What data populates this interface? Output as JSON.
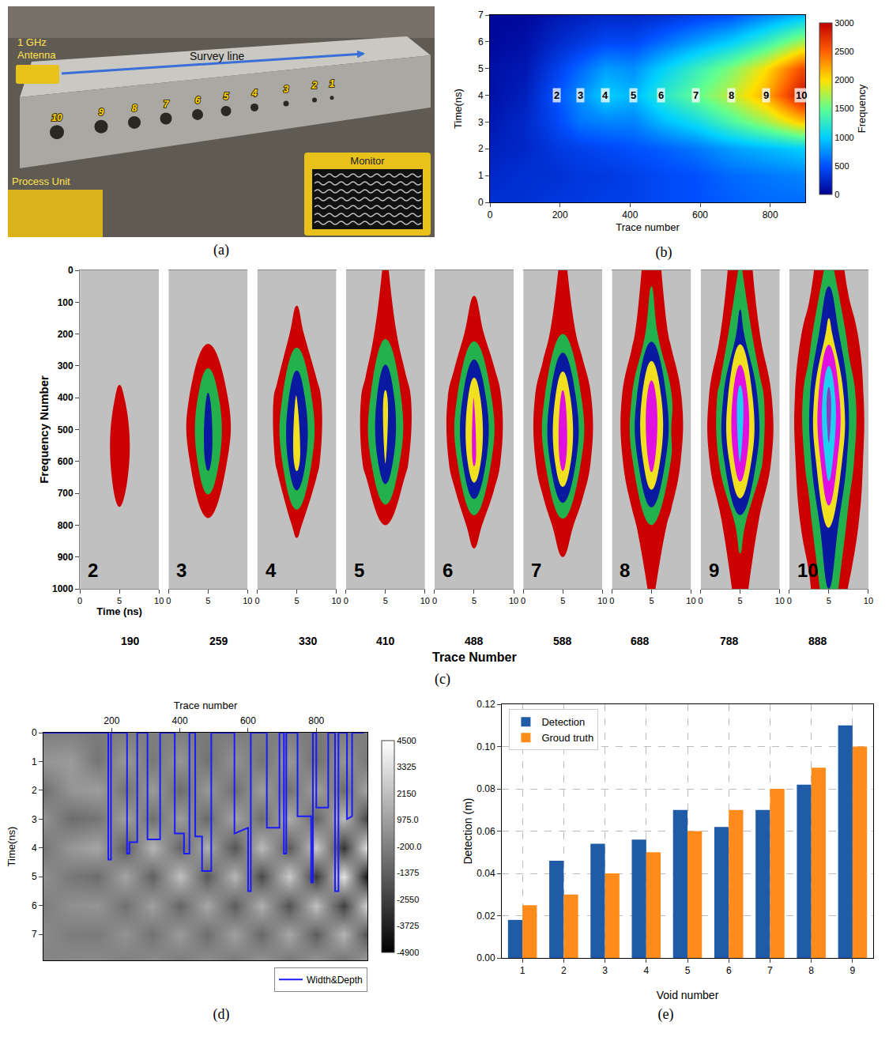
{
  "photo": {
    "panel": "(a)",
    "antenna": [
      "1 GHz",
      "Antenna"
    ],
    "survey_line": "Survey line",
    "monitor": "Monitor",
    "process_unit": "Process Unit",
    "voids": [
      "10",
      "9",
      "8",
      "7",
      "6",
      "5",
      "4",
      "3",
      "2",
      "1"
    ]
  },
  "chart_data": [
    {
      "panel": "(b)",
      "type": "heatmap",
      "x_title": "Trace number",
      "y_title": "Time(ns)",
      "colorbar_title": "Frequency",
      "x": [
        0,
        100,
        190,
        259,
        330,
        410,
        488,
        588,
        688,
        788,
        888
      ],
      "y": [
        0,
        1,
        2,
        3,
        4,
        5,
        6,
        7
      ],
      "z": [
        [
          300,
          300,
          350,
          350,
          400,
          400,
          450,
          500,
          550,
          600,
          600
        ],
        [
          250,
          300,
          300,
          350,
          350,
          400,
          450,
          500,
          600,
          650,
          700
        ],
        [
          200,
          250,
          350,
          400,
          450,
          500,
          550,
          650,
          800,
          900,
          1000
        ],
        [
          150,
          250,
          450,
          650,
          700,
          700,
          900,
          1100,
          1400,
          1700,
          2100
        ],
        [
          100,
          200,
          500,
          750,
          1000,
          900,
          1200,
          1500,
          1800,
          2200,
          2900
        ],
        [
          100,
          150,
          400,
          600,
          800,
          750,
          1000,
          1300,
          1600,
          2000,
          2600
        ],
        [
          50,
          100,
          250,
          350,
          450,
          450,
          600,
          800,
          1000,
          1300,
          1700
        ],
        [
          50,
          50,
          150,
          200,
          250,
          250,
          300,
          400,
          500,
          700,
          900
        ]
      ],
      "xlim": [
        0,
        900
      ],
      "xticks": [
        0,
        200,
        400,
        600,
        800
      ],
      "ylim": [
        0,
        7
      ],
      "yticks": [
        0,
        1,
        2,
        3,
        4,
        5,
        6,
        7
      ],
      "zlim": [
        0,
        3000
      ],
      "zticks": [
        0,
        500,
        1000,
        1500,
        2000,
        2500,
        3000
      ],
      "colors": [
        "#000090",
        "#0050ff",
        "#00d0ff",
        "#60ff90",
        "#ffe000",
        "#ff6000",
        "#c00000"
      ],
      "point_labels": [
        {
          "text": "2",
          "x": 190,
          "y": 4
        },
        {
          "text": "3",
          "x": 259,
          "y": 4
        },
        {
          "text": "4",
          "x": 330,
          "y": 4
        },
        {
          "text": "5",
          "x": 410,
          "y": 4
        },
        {
          "text": "6",
          "x": 488,
          "y": 4
        },
        {
          "text": "7",
          "x": 588,
          "y": 4
        },
        {
          "text": "8",
          "x": 688,
          "y": 4
        },
        {
          "text": "9",
          "x": 788,
          "y": 4
        },
        {
          "text": "10",
          "x": 888,
          "y": 4
        }
      ]
    },
    {
      "panel": "(c)",
      "type": "contour",
      "x_title": "Time (ns)",
      "y_title": "Frequency Number",
      "group_title": "Trace Number",
      "x": [
        0,
        2.5,
        5,
        7.5,
        10
      ],
      "y": [
        0,
        200,
        400,
        600,
        800,
        1000
      ],
      "xlim": [
        0,
        10
      ],
      "xticks": [
        0,
        5,
        10
      ],
      "ylim": [
        1000,
        0
      ],
      "yticks": [
        0,
        100,
        200,
        300,
        400,
        500,
        600,
        700,
        800,
        900,
        1000
      ],
      "levels": [
        1,
        2,
        3,
        4,
        5,
        6,
        7
      ],
      "colors": [
        "#c0c0c0",
        "#cc0000",
        "#22b14c",
        "#0a1aa0",
        "#f0e020",
        "#e010e0",
        "#20d0f0",
        "#8040c0"
      ],
      "slices": [
        {
          "label": "2",
          "trace": 190,
          "z": [
            [
              0,
              0,
              0.3,
              0,
              0
            ],
            [
              0,
              0,
              0.2,
              0,
              0
            ],
            [
              0,
              0.3,
              1.2,
              0.4,
              0
            ],
            [
              0,
              0.4,
              1.5,
              0.5,
              0
            ],
            [
              0,
              0.2,
              0.8,
              0.2,
              0
            ],
            [
              0,
              0,
              0.3,
              0,
              0
            ]
          ]
        },
        {
          "label": "3",
          "trace": 259,
          "z": [
            [
              0,
              0,
              0,
              0,
              0
            ],
            [
              0,
              0.2,
              0.6,
              0.2,
              0
            ],
            [
              0,
              0.9,
              3.2,
              1.0,
              0
            ],
            [
              0,
              0.8,
              3.4,
              0.9,
              0
            ],
            [
              0,
              0.2,
              0.7,
              0.2,
              0
            ],
            [
              0,
              0,
              0,
              0,
              0
            ]
          ]
        },
        {
          "label": "4",
          "trace": 330,
          "z": [
            [
              0,
              0,
              0.5,
              0,
              0
            ],
            [
              0,
              0.3,
              1.4,
              0.3,
              0
            ],
            [
              0,
              1.2,
              4.2,
              1.3,
              0
            ],
            [
              0,
              1.1,
              4.5,
              1.2,
              0
            ],
            [
              0,
              0.4,
              1.2,
              0.4,
              0
            ],
            [
              0,
              0,
              0.2,
              0,
              0
            ]
          ]
        },
        {
          "label": "5",
          "trace": 410,
          "z": [
            [
              0,
              0,
              1.2,
              0,
              0
            ],
            [
              0,
              0.4,
              1.8,
              0.4,
              0
            ],
            [
              0,
              1.3,
              4.3,
              1.4,
              0
            ],
            [
              0,
              1.2,
              4.1,
              1.2,
              0
            ],
            [
              0,
              0.3,
              1.0,
              0.3,
              0
            ],
            [
              0,
              0,
              0.1,
              0,
              0
            ]
          ]
        },
        {
          "label": "6",
          "trace": 488,
          "z": [
            [
              0,
              0,
              0.6,
              0,
              0
            ],
            [
              0,
              0.4,
              1.6,
              0.4,
              0
            ],
            [
              0,
              1.5,
              5.1,
              1.6,
              0
            ],
            [
              0,
              1.4,
              5.3,
              1.5,
              0
            ],
            [
              0,
              0.4,
              1.4,
              0.4,
              0
            ],
            [
              0,
              0,
              0.3,
              0,
              0
            ]
          ]
        },
        {
          "label": "7",
          "trace": 588,
          "z": [
            [
              0,
              0,
              1.3,
              0,
              0
            ],
            [
              0,
              0.5,
              2.0,
              0.5,
              0
            ],
            [
              0,
              1.7,
              5.4,
              1.8,
              0
            ],
            [
              0,
              1.6,
              5.6,
              1.7,
              0
            ],
            [
              0,
              0.5,
              1.6,
              0.5,
              0
            ],
            [
              0,
              0,
              0.4,
              0,
              0
            ]
          ]
        },
        {
          "label": "8",
          "trace": 688,
          "z": [
            [
              0,
              0.2,
              1.8,
              0.2,
              0
            ],
            [
              0,
              0.7,
              2.6,
              0.7,
              0
            ],
            [
              0,
              2.0,
              5.9,
              2.1,
              0
            ],
            [
              0,
              1.8,
              5.6,
              1.9,
              0
            ],
            [
              0,
              0.7,
              2.0,
              0.7,
              0
            ],
            [
              0,
              0.2,
              1.2,
              0.2,
              0
            ]
          ]
        },
        {
          "label": "9",
          "trace": 788,
          "z": [
            [
              0,
              0.3,
              2.2,
              0.3,
              0
            ],
            [
              0,
              1.0,
              3.5,
              1.0,
              0
            ],
            [
              0,
              2.4,
              6.6,
              2.5,
              0
            ],
            [
              0,
              2.2,
              6.2,
              2.3,
              0
            ],
            [
              0,
              0.8,
              2.4,
              0.8,
              0
            ],
            [
              0,
              0.3,
              1.5,
              0.3,
              0
            ]
          ]
        },
        {
          "label": "10",
          "trace": 888,
          "z": [
            [
              0,
              0.5,
              2.5,
              0.6,
              0
            ],
            [
              0.2,
              1.5,
              4.5,
              1.6,
              0.3
            ],
            [
              0.3,
              2.8,
              7.5,
              2.9,
              0.4
            ],
            [
              0.3,
              2.5,
              6.8,
              2.6,
              0.4
            ],
            [
              0.2,
              1.6,
              4.2,
              1.7,
              0.3
            ],
            [
              0,
              0.8,
              3.0,
              0.9,
              0.2
            ]
          ]
        }
      ]
    },
    {
      "panel": "(d)",
      "type": "heatmap",
      "x_title": "Trace number",
      "y_title": "Time(ns)",
      "x": [
        0,
        80,
        160,
        240,
        320,
        400,
        480,
        560,
        640,
        720,
        800,
        880,
        950
      ],
      "y": [
        0,
        1,
        2,
        3,
        4,
        5,
        6,
        7,
        8
      ],
      "z": [
        [
          -300,
          -200,
          -400,
          -300,
          -200,
          -300,
          -400,
          -300,
          -200,
          -300,
          -400,
          -300,
          -200
        ],
        [
          600,
          800,
          -600,
          700,
          -500,
          600,
          -700,
          500,
          -600,
          700,
          -800,
          600,
          -500
        ],
        [
          -800,
          600,
          900,
          -700,
          800,
          -900,
          700,
          -800,
          900,
          -700,
          1000,
          -900,
          1200
        ],
        [
          500,
          -900,
          -600,
          1000,
          -800,
          900,
          -1000,
          1200,
          -900,
          1500,
          -1200,
          2000,
          -2500
        ],
        [
          -600,
          700,
          1200,
          -1500,
          1800,
          -1200,
          1500,
          -1800,
          2000,
          -1600,
          2500,
          -3000,
          3500
        ],
        [
          400,
          -500,
          -900,
          1200,
          -1400,
          2200,
          -1600,
          1800,
          -2200,
          2600,
          -2800,
          3500,
          -4200
        ],
        [
          -300,
          400,
          600,
          -800,
          1000,
          -1200,
          1300,
          -1500,
          1600,
          -1900,
          2200,
          -2600,
          3000
        ],
        [
          200,
          -300,
          -400,
          500,
          -700,
          800,
          -900,
          1000,
          -1100,
          1300,
          -1500,
          1800,
          -2000
        ],
        [
          -100,
          200,
          300,
          -300,
          400,
          -500,
          500,
          -600,
          700,
          -800,
          900,
          -1000,
          1200
        ]
      ],
      "xlim": [
        0,
        950
      ],
      "xticks": [
        200,
        400,
        600,
        800
      ],
      "ylim": [
        7.9,
        0
      ],
      "yticks": [
        0,
        1,
        2,
        3,
        4,
        5,
        6,
        7
      ],
      "zlim": [
        -4900,
        4500
      ],
      "zticks": [
        4500,
        3325,
        2150,
        {
          "value": 975,
          "label": "975.0"
        },
        {
          "value": -200,
          "label": "-200.0"
        },
        -1375,
        -2550,
        -3725,
        -4900
      ],
      "colors": [
        "#000000",
        "#ffffff"
      ],
      "legend": "bottom",
      "series": [
        {
          "name": "Width&Depth",
          "color": "#1a1aff",
          "x": [
            0,
            190,
            190,
            198,
            198,
            245,
            245,
            252,
            252,
            275,
            275,
            305,
            305,
            342,
            342,
            385,
            385,
            412,
            412,
            428,
            428,
            445,
            445,
            465,
            465,
            492,
            492,
            560,
            560,
            600,
            600,
            608,
            608,
            655,
            655,
            692,
            692,
            705,
            705,
            712,
            712,
            745,
            745,
            785,
            785,
            790,
            790,
            800,
            800,
            835,
            835,
            855,
            855,
            865,
            865,
            890,
            890,
            905,
            905,
            940
          ],
          "y": [
            0,
            0,
            4.4,
            4.4,
            0,
            0,
            4.2,
            4.2,
            3.8,
            3.8,
            0,
            0,
            3.7,
            3.7,
            0,
            0,
            3.5,
            3.5,
            4.2,
            4.2,
            0,
            0,
            3.6,
            3.6,
            4.8,
            4.8,
            0,
            0,
            3.5,
            3.3,
            5.5,
            5.5,
            0,
            0,
            3.3,
            3.3,
            0,
            0,
            4.2,
            4.2,
            0,
            0,
            2.9,
            2.9,
            5.2,
            5.2,
            0,
            0,
            2.6,
            2.6,
            0,
            0,
            5.5,
            5.5,
            0,
            0,
            3.0,
            2.9,
            0,
            0
          ]
        }
      ]
    },
    {
      "panel": "(e)",
      "type": "bar",
      "x_title": "Void number",
      "y_title": "Detection (m)",
      "categories": [
        "1",
        "2",
        "3",
        "4",
        "5",
        "6",
        "7",
        "8",
        "9"
      ],
      "series": [
        {
          "name": "Detection",
          "color": "#1f5ba6",
          "values": [
            0.018,
            0.046,
            0.054,
            0.056,
            0.07,
            0.062,
            0.07,
            0.082,
            0.11
          ]
        },
        {
          "name": "Groud truth",
          "color": "#ff8c1a",
          "values": [
            0.025,
            0.03,
            0.04,
            0.05,
            0.06,
            0.07,
            0.08,
            0.09,
            0.1
          ]
        }
      ],
      "ylim": [
        0,
        0.12
      ],
      "yticks": [
        {
          "value": 0,
          "label": "0.00"
        },
        {
          "value": 0.02,
          "label": "0.02"
        },
        {
          "value": 0.04,
          "label": "0.04"
        },
        {
          "value": 0.06,
          "label": "0.06"
        },
        {
          "value": 0.08,
          "label": "0.08"
        },
        {
          "value": 0.1,
          "label": "0.10"
        },
        {
          "value": 0.12,
          "label": "0.12"
        }
      ],
      "grid": true,
      "legend": "top left"
    }
  ]
}
